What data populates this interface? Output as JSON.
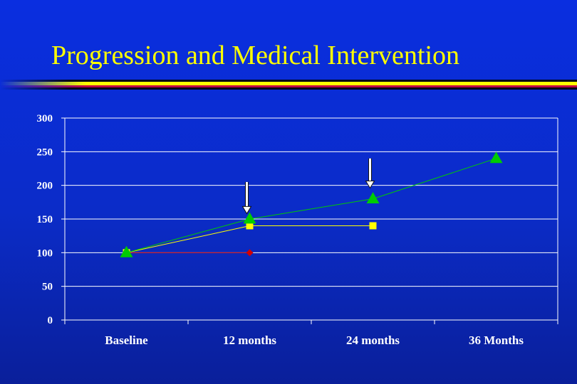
{
  "slide": {
    "title": "Progression and Medical Intervention"
  },
  "colors": {
    "background": "#0b2cc8",
    "title": "#ffff00",
    "grid": "#ffffff",
    "series_triangle": "#00cc00",
    "series_square": "#ffff00",
    "series_diamond": "#d40000",
    "arrow": "#ffffff"
  },
  "chart_data": {
    "type": "line",
    "title": "",
    "xlabel": "",
    "ylabel": "",
    "categories": [
      "Baseline",
      "12 months",
      "24 months",
      "36 Months"
    ],
    "ylim": [
      0,
      300
    ],
    "yticks": [
      0,
      50,
      100,
      150,
      200,
      250,
      300
    ],
    "grid": true,
    "legend": "none",
    "series": [
      {
        "marker": "triangle",
        "color": "#00cc00",
        "values": [
          100,
          150,
          180,
          240
        ],
        "connect": [
          true,
          true,
          true
        ]
      },
      {
        "marker": "square",
        "color": "#ffff00",
        "values": [
          100,
          140,
          140,
          null
        ],
        "connect": [
          true,
          true,
          false
        ]
      },
      {
        "marker": "diamond",
        "color": "#d40000",
        "values": [
          100,
          100,
          null,
          null
        ],
        "connect": [
          true,
          false,
          false
        ]
      }
    ],
    "annotations": [
      {
        "type": "down-arrow",
        "category": "12 months",
        "y_from": 205,
        "y_to": 158
      },
      {
        "type": "down-arrow",
        "category": "24 months",
        "y_from": 240,
        "y_to": 196
      }
    ]
  }
}
